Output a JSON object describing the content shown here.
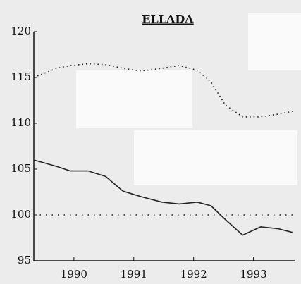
{
  "chart_data": {
    "type": "line",
    "title": "ELLADA",
    "x": [
      1989.33,
      1989.71,
      1989.94,
      1990.24,
      1990.53,
      1990.82,
      1991.12,
      1991.47,
      1991.76,
      1992.06,
      1992.29,
      1992.53,
      1992.82,
      1993.12,
      1993.41,
      1993.65
    ],
    "series": [
      {
        "name": null,
        "color": "#222",
        "style": "dotted",
        "values": [
          115.0,
          116.0,
          116.3,
          116.5,
          116.4,
          116.0,
          115.7,
          116.0,
          116.3,
          115.8,
          114.5,
          112.0,
          110.7,
          110.7,
          111.0,
          111.3
        ]
      },
      {
        "name": null,
        "color": "#222",
        "style": "solid",
        "values": [
          106.0,
          105.3,
          104.8,
          104.8,
          104.2,
          102.6,
          102.0,
          101.4,
          101.2,
          101.4,
          101.0,
          99.5,
          97.8,
          98.7,
          98.5,
          98.1
        ]
      }
    ],
    "reference": 100,
    "xlim": [
      1989.33,
      1993.7
    ],
    "xticks": [
      1990,
      1991,
      1992,
      1993
    ],
    "ylim": [
      95,
      120
    ],
    "yticks": [
      95,
      100,
      105,
      110,
      115,
      120
    ],
    "grid": false
  }
}
